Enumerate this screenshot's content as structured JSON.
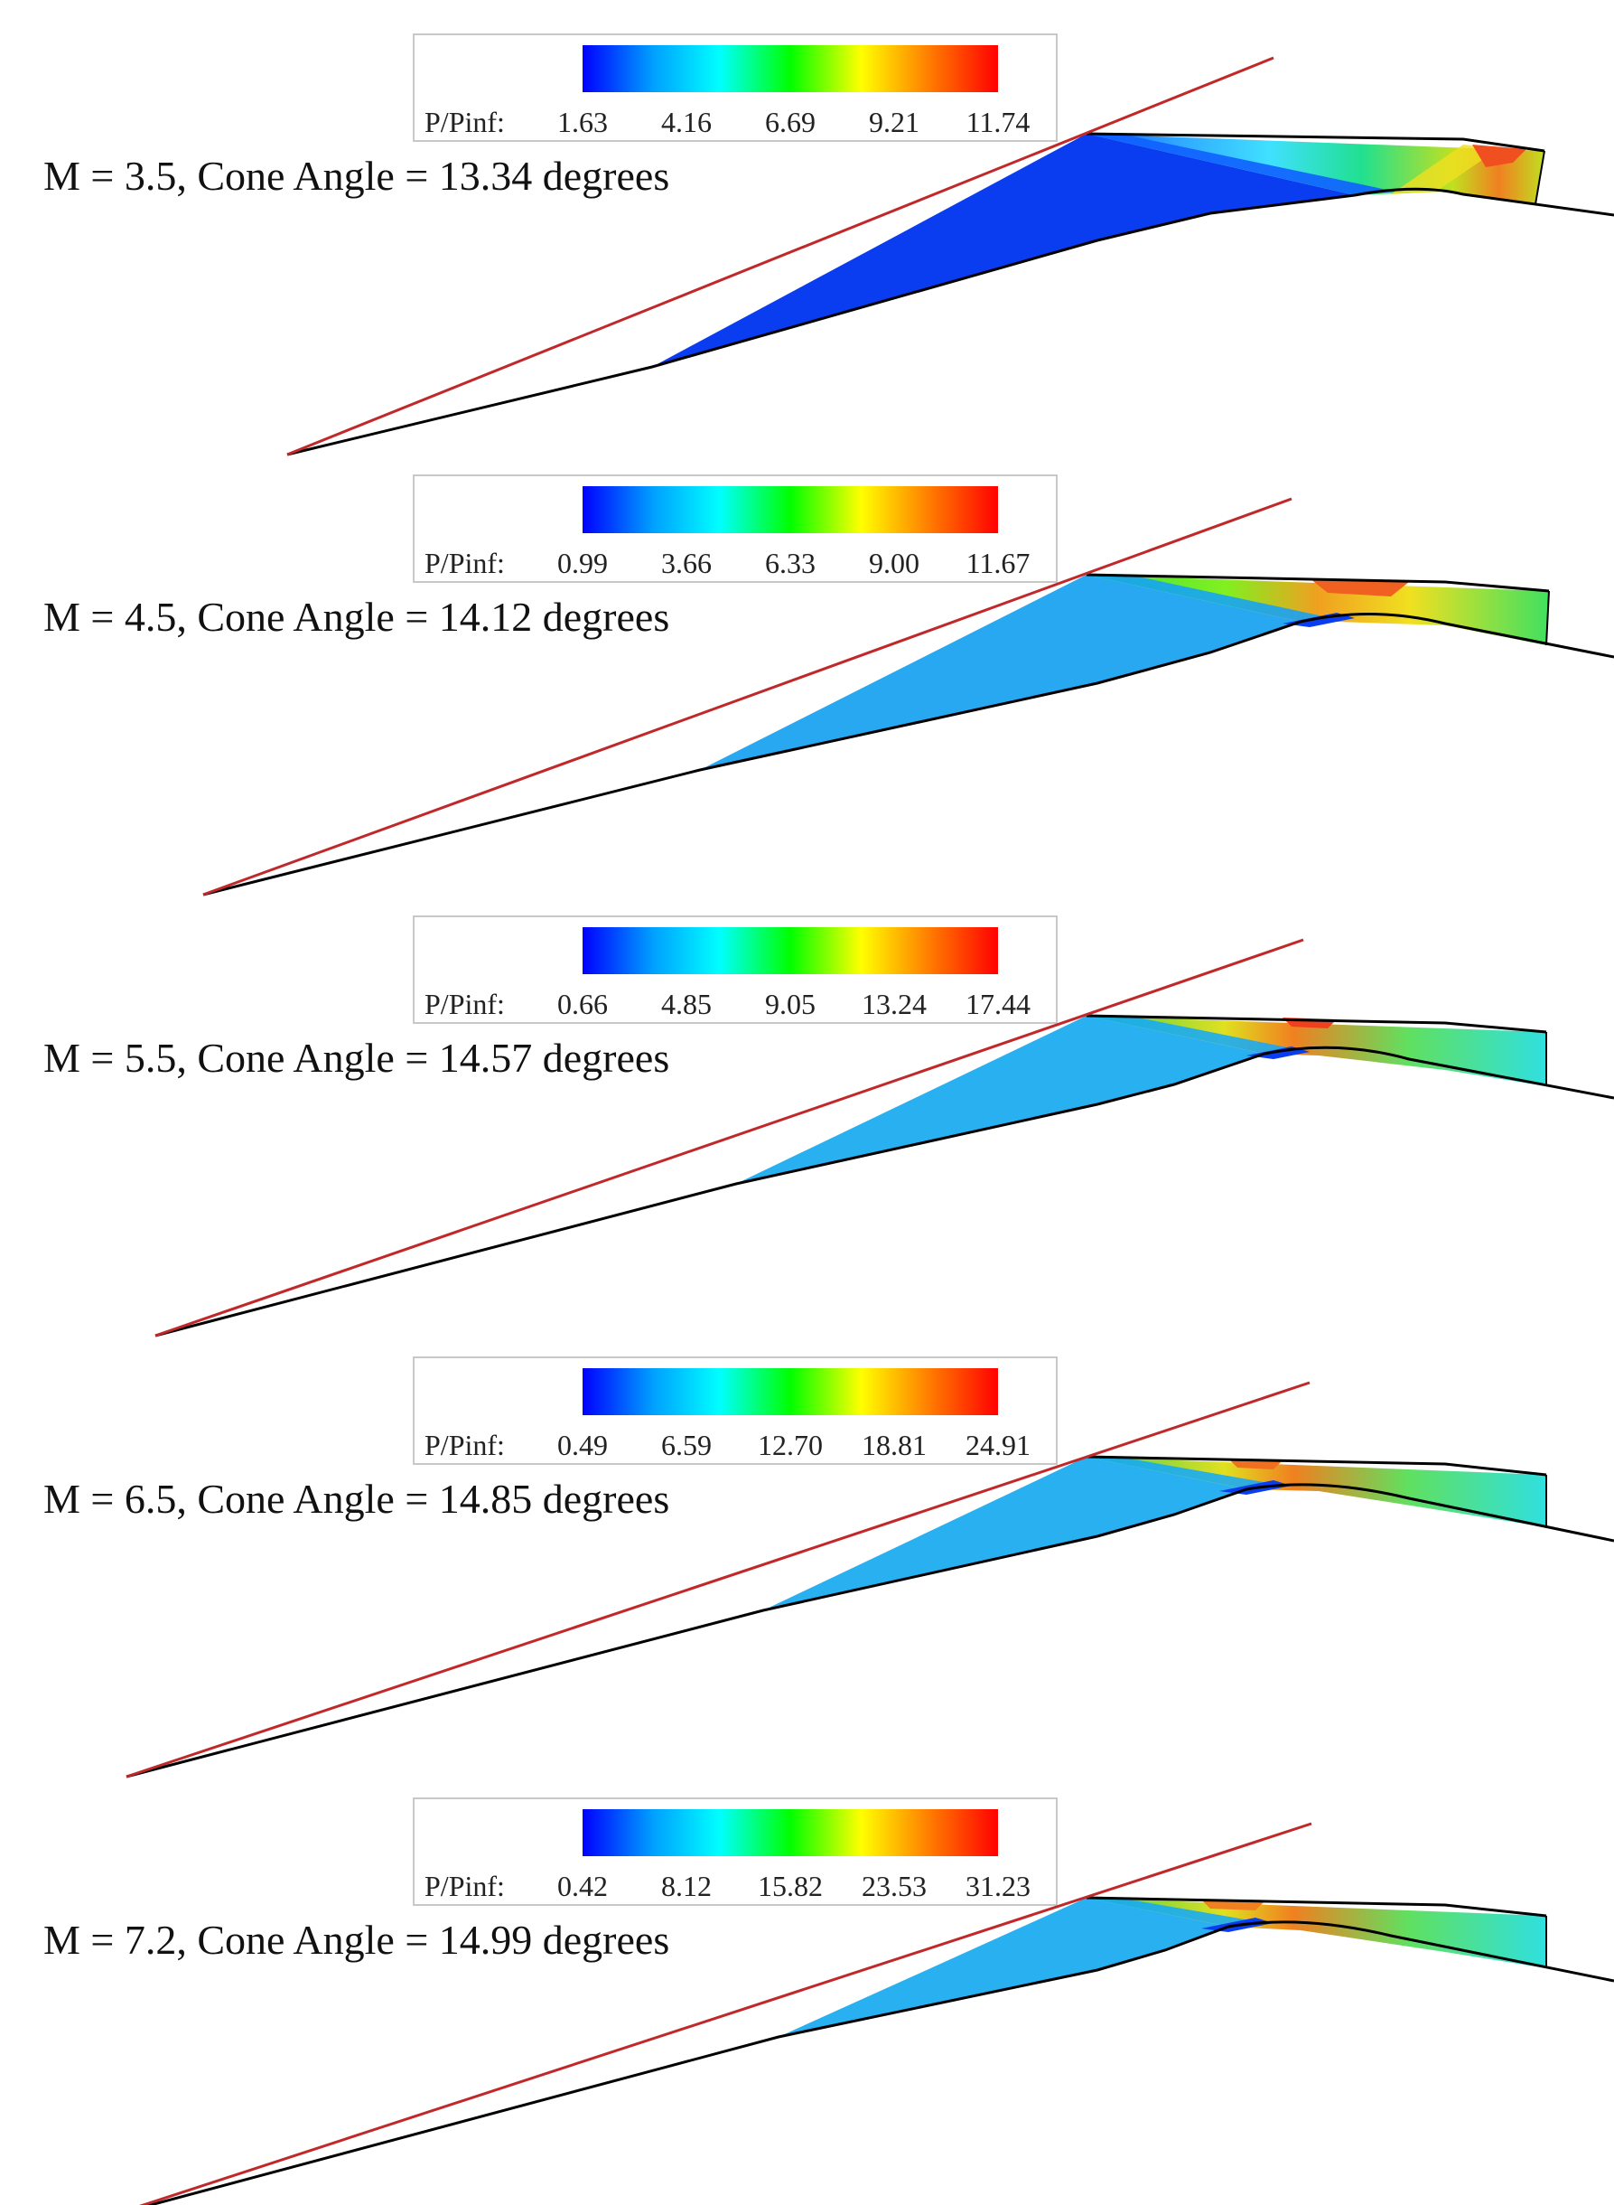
{
  "figure": {
    "colorbar_title": "P/Pinf:",
    "colormap": [
      "#0000ff",
      "#00a0ff",
      "#00ffff",
      "#00ff00",
      "#ffff00",
      "#ff8000",
      "#ff0000"
    ],
    "shock_line_color": "#c0282a",
    "wall_line_color": "#000000",
    "panels": [
      {
        "label": "M = 3.5, Cone Angle = 13.34 degrees",
        "colorbar_ticks": [
          "1.63",
          "4.16",
          "6.69",
          "9.21",
          "11.74"
        ]
      },
      {
        "label": "M = 4.5, Cone Angle = 14.12 degrees",
        "colorbar_ticks": [
          "0.99",
          "3.66",
          "6.33",
          "9.00",
          "11.67"
        ]
      },
      {
        "label": "M = 5.5, Cone Angle = 14.57 degrees",
        "colorbar_ticks": [
          "0.66",
          "4.85",
          "9.05",
          "13.24",
          "17.44"
        ]
      },
      {
        "label": "M = 6.5, Cone Angle = 14.85 degrees",
        "colorbar_ticks": [
          "0.49",
          "6.59",
          "12.70",
          "18.81",
          "24.91"
        ]
      },
      {
        "label": "M = 7.2, Cone Angle = 14.99 degrees",
        "colorbar_ticks": [
          "0.42",
          "8.12",
          "15.82",
          "23.53",
          "31.23"
        ]
      }
    ]
  }
}
